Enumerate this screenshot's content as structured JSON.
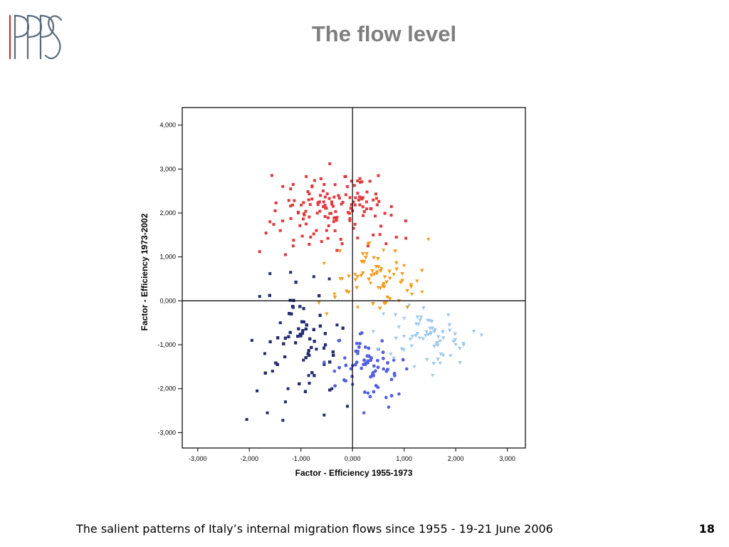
{
  "slide": {
    "title": "The flow level",
    "footer": "The salient patterns of Italy’s internal migration flows since 1955 - 19-21 June 2006",
    "page_number": "18",
    "logo_text": "RPPS"
  },
  "chart_data": {
    "type": "scatter",
    "title": "",
    "xlabel": "Factor - Efficiency 1955-1973",
    "ylabel": "Factor - Efficiency 1973-2002",
    "xlim": [
      -3.3,
      3.35
    ],
    "ylim": [
      -3.35,
      4.4
    ],
    "x_ticks": [
      -3,
      -2,
      -1,
      0,
      1,
      2,
      3
    ],
    "y_ticks": [
      -3,
      -2,
      -1,
      0,
      1,
      2,
      3,
      4
    ],
    "x_tick_labels": [
      "-3,000",
      "-2,000",
      "-1,000",
      "0,000",
      "1,000",
      "2,000",
      "3,000"
    ],
    "y_tick_labels": [
      "-3,000",
      "-2,000",
      "-1,000",
      "0,000",
      "1,000",
      "2,000",
      "3,000",
      "4,000"
    ],
    "grid": false,
    "reference_lines": {
      "x": 0,
      "y": 0
    },
    "legend": "none",
    "series": [
      {
        "color": "#e03a3e",
        "marker": "square",
        "count": 150,
        "region": {
          "x": [
            -1.9,
            1.1
          ],
          "y": [
            1.1,
            3.15
          ]
        },
        "points": [
          [
            -0.44,
            3.12
          ],
          [
            0.5,
            2.85
          ],
          [
            -0.55,
            2.65
          ],
          [
            -1.15,
            2.65
          ],
          [
            0.15,
            2.7
          ],
          [
            -1.2,
            2.55
          ],
          [
            0.2,
            2.35
          ],
          [
            -0.1,
            2.6
          ],
          [
            0.1,
            2.45
          ],
          [
            -1.5,
            2.05
          ],
          [
            -1.6,
            1.8
          ],
          [
            -1.05,
            2.0
          ],
          [
            0.35,
            2.1
          ],
          [
            0.75,
            1.95
          ],
          [
            1.03,
            1.82
          ],
          [
            -1.8,
            1.12
          ],
          [
            -1.3,
            1.05
          ],
          [
            -0.9,
            1.75
          ],
          [
            -0.7,
            1.6
          ],
          [
            -0.3,
            1.9
          ],
          [
            0.0,
            2.05
          ],
          [
            -0.6,
            1.35
          ],
          [
            0.4,
            1.5
          ],
          [
            -0.85,
            2.3
          ],
          [
            -0.05,
            2.35
          ],
          [
            0.3,
            1.25
          ],
          [
            0.55,
            1.7
          ],
          [
            0.85,
            1.45
          ],
          [
            -1.4,
            1.6
          ],
          [
            -1.15,
            1.25
          ],
          [
            -0.2,
            1.3
          ],
          [
            -0.4,
            2.2
          ],
          [
            0.65,
            1.3
          ]
        ]
      },
      {
        "color": "#f39c1f",
        "marker": "triangle",
        "count": 280,
        "region": {
          "x": [
            -0.8,
            1.5
          ],
          "y": [
            -0.55,
            1.45
          ]
        },
        "points": [
          [
            1.47,
            1.4
          ],
          [
            -0.55,
            0.85
          ],
          [
            -0.65,
            -0.05
          ],
          [
            1.15,
            0.15
          ],
          [
            1.35,
            0.2
          ],
          [
            0.3,
            1.3
          ],
          [
            0.6,
            1.15
          ],
          [
            1.0,
            0.8
          ],
          [
            -0.2,
            0.5
          ],
          [
            0.5,
            0.3
          ],
          [
            0.9,
            0.0
          ],
          [
            -0.5,
            -0.3
          ],
          [
            0.1,
            -0.15
          ],
          [
            0.8,
            0.6
          ],
          [
            0.2,
            0.9
          ],
          [
            0.35,
            0.4
          ],
          [
            -0.35,
            0.15
          ],
          [
            0.65,
            -0.05
          ],
          [
            1.25,
            0.45
          ],
          [
            0.05,
            0.6
          ]
        ]
      },
      {
        "color": "#232c6e",
        "marker": "square",
        "count": 330,
        "region": {
          "x": [
            -2.1,
            -0.05
          ],
          "y": [
            -2.7,
            0.65
          ]
        },
        "points": [
          [
            -2.05,
            -2.7
          ],
          [
            -1.35,
            -2.72
          ],
          [
            -1.65,
            -2.55
          ],
          [
            -0.55,
            -2.6
          ],
          [
            -0.1,
            -2.4
          ],
          [
            -1.95,
            -0.9
          ],
          [
            -1.8,
            0.1
          ],
          [
            -1.6,
            0.62
          ],
          [
            -1.2,
            0.65
          ],
          [
            -0.75,
            0.55
          ],
          [
            -0.45,
            0.5
          ],
          [
            -1.4,
            -0.5
          ],
          [
            -1.0,
            -0.8
          ],
          [
            -0.7,
            -1.1
          ],
          [
            -1.55,
            -1.6
          ],
          [
            -1.25,
            -2.0
          ],
          [
            -0.85,
            -1.7
          ],
          [
            -0.4,
            -2.0
          ],
          [
            -1.85,
            -2.05
          ],
          [
            -0.3,
            -0.55
          ],
          [
            -1.15,
            -0.15
          ],
          [
            -0.95,
            -1.35
          ],
          [
            -1.7,
            -1.2
          ],
          [
            -0.55,
            -1.45
          ],
          [
            -1.3,
            -2.3
          ]
        ]
      },
      {
        "color": "#5460e0",
        "marker": "circle",
        "count": 210,
        "region": {
          "x": [
            -0.7,
            1.1
          ],
          "y": [
            -2.55,
            -0.6
          ]
        },
        "points": [
          [
            0.22,
            -2.55
          ],
          [
            0.7,
            -2.42
          ],
          [
            0.65,
            -2.2
          ],
          [
            0.9,
            -2.12
          ],
          [
            1.05,
            -1.55
          ],
          [
            0.8,
            -1.35
          ],
          [
            0.4,
            -1.7
          ],
          [
            0.1,
            -1.2
          ],
          [
            -0.25,
            -0.9
          ],
          [
            -0.55,
            -1.4
          ],
          [
            0.0,
            -1.9
          ],
          [
            0.3,
            -2.1
          ],
          [
            -0.35,
            -1.6
          ],
          [
            0.15,
            -0.75
          ],
          [
            0.5,
            -1.1
          ],
          [
            -0.15,
            -1.3
          ],
          [
            0.6,
            -1.55
          ],
          [
            0.25,
            -1.45
          ]
        ]
      },
      {
        "color": "#9ec9ea",
        "marker": "triangle",
        "count": 170,
        "region": {
          "x": [
            0.3,
            2.5
          ],
          "y": [
            -1.75,
            -0.05
          ]
        },
        "points": [
          [
            2.5,
            -0.78
          ],
          [
            1.9,
            -1.25
          ],
          [
            1.55,
            -1.7
          ],
          [
            1.7,
            -1.42
          ],
          [
            2.0,
            -1.0
          ],
          [
            1.1,
            -0.1
          ],
          [
            0.6,
            -0.3
          ],
          [
            0.9,
            -0.6
          ],
          [
            1.3,
            -0.85
          ],
          [
            0.5,
            -1.1
          ],
          [
            1.5,
            -0.45
          ],
          [
            0.4,
            -0.7
          ],
          [
            0.8,
            -1.3
          ],
          [
            1.75,
            -0.7
          ],
          [
            1.2,
            -1.5
          ],
          [
            1.0,
            -0.4
          ]
        ]
      }
    ]
  }
}
